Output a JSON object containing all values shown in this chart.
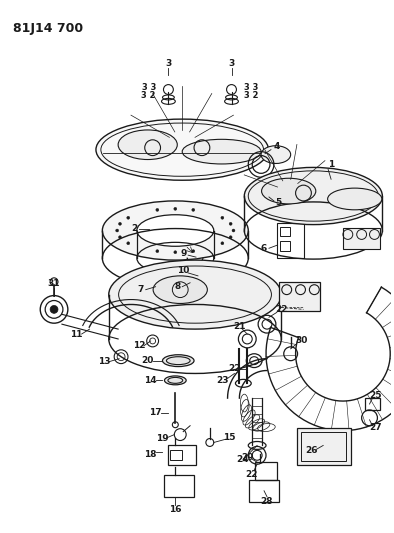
{
  "title": "81J14 700",
  "bg_color": "#ffffff",
  "line_color": "#1a1a1a",
  "title_fontsize": 9,
  "label_fontsize": 6.5,
  "fig_width": 3.94,
  "fig_height": 5.33,
  "dpi": 100
}
